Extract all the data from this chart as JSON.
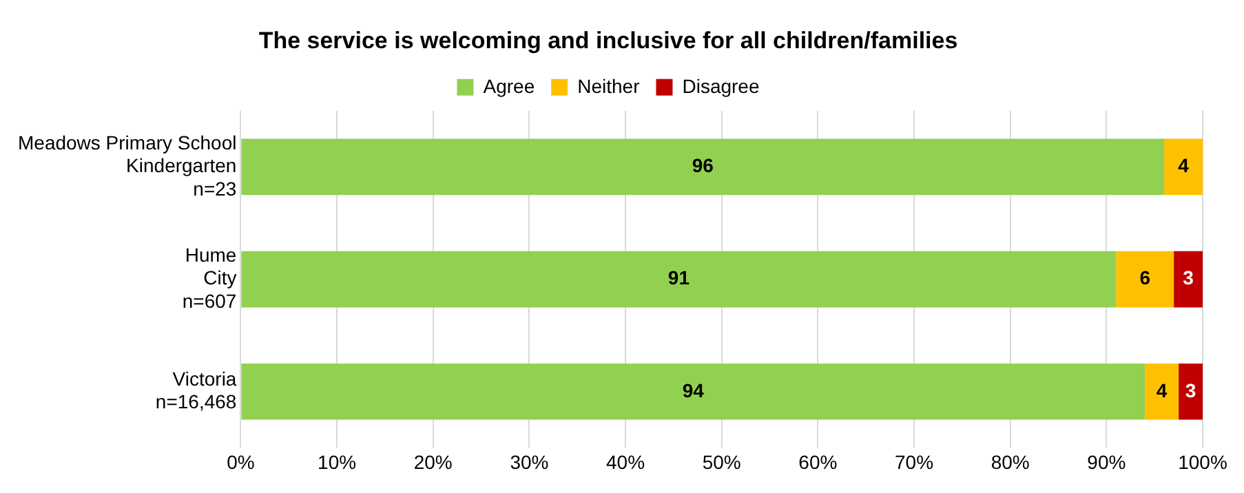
{
  "chart_data": {
    "type": "bar",
    "orientation": "horizontal",
    "stacked": true,
    "title": "The service is welcoming and inclusive for all children/families",
    "categories": [
      "Meadows Primary School\nKindergarten\nn=23",
      "Hume\nCity\nn=607",
      "Victoria\nn=16,468"
    ],
    "series": [
      {
        "name": "Agree",
        "color": "#92d050",
        "values": [
          96,
          91,
          94
        ],
        "value_labels": [
          "96",
          "91",
          "94"
        ]
      },
      {
        "name": "Neither",
        "color": "#ffc000",
        "values": [
          4,
          6,
          3.5
        ],
        "value_labels": [
          "4",
          "6",
          "4"
        ]
      },
      {
        "name": "Disagree",
        "color": "#c00000",
        "values": [
          null,
          3,
          2.5
        ],
        "value_labels": [
          null,
          "3",
          "3"
        ]
      }
    ],
    "xlim": [
      0,
      100
    ],
    "xticks": [
      {
        "value": 0,
        "label": "0%"
      },
      {
        "value": 10,
        "label": "10%"
      },
      {
        "value": 20,
        "label": "20%"
      },
      {
        "value": 30,
        "label": "30%"
      },
      {
        "value": 40,
        "label": "40%"
      },
      {
        "value": 50,
        "label": "50%"
      },
      {
        "value": 60,
        "label": "60%"
      },
      {
        "value": 70,
        "label": "70%"
      },
      {
        "value": 80,
        "label": "80%"
      },
      {
        "value": 90,
        "label": "90%"
      },
      {
        "value": 100,
        "label": "100%"
      }
    ],
    "grid": "x",
    "legend": "top"
  }
}
